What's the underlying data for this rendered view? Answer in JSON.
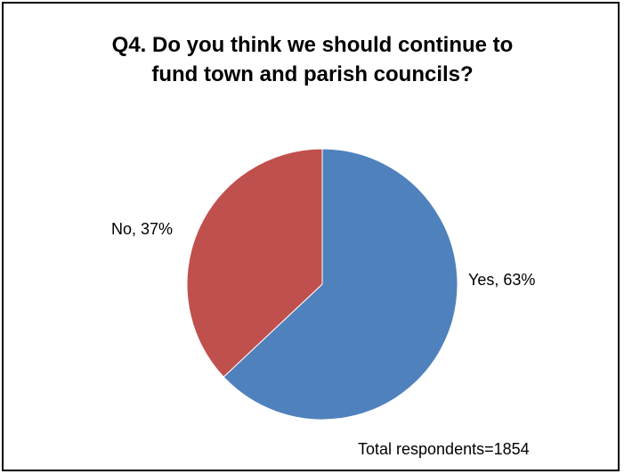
{
  "chart_data": {
    "type": "pie",
    "title_lines": [
      "Q4. Do you think we should continue to",
      "fund town and parish councils?"
    ],
    "slices": [
      {
        "label": "Yes",
        "value": 63,
        "display": "Yes, 63%",
        "color": "#4f81bd"
      },
      {
        "label": "No",
        "value": 37,
        "display": "No, 37%",
        "color": "#c0504d"
      }
    ],
    "footnote": "Total respondents=1854",
    "legend": "none",
    "start_angle_deg": 0,
    "direction": "clockwise"
  }
}
